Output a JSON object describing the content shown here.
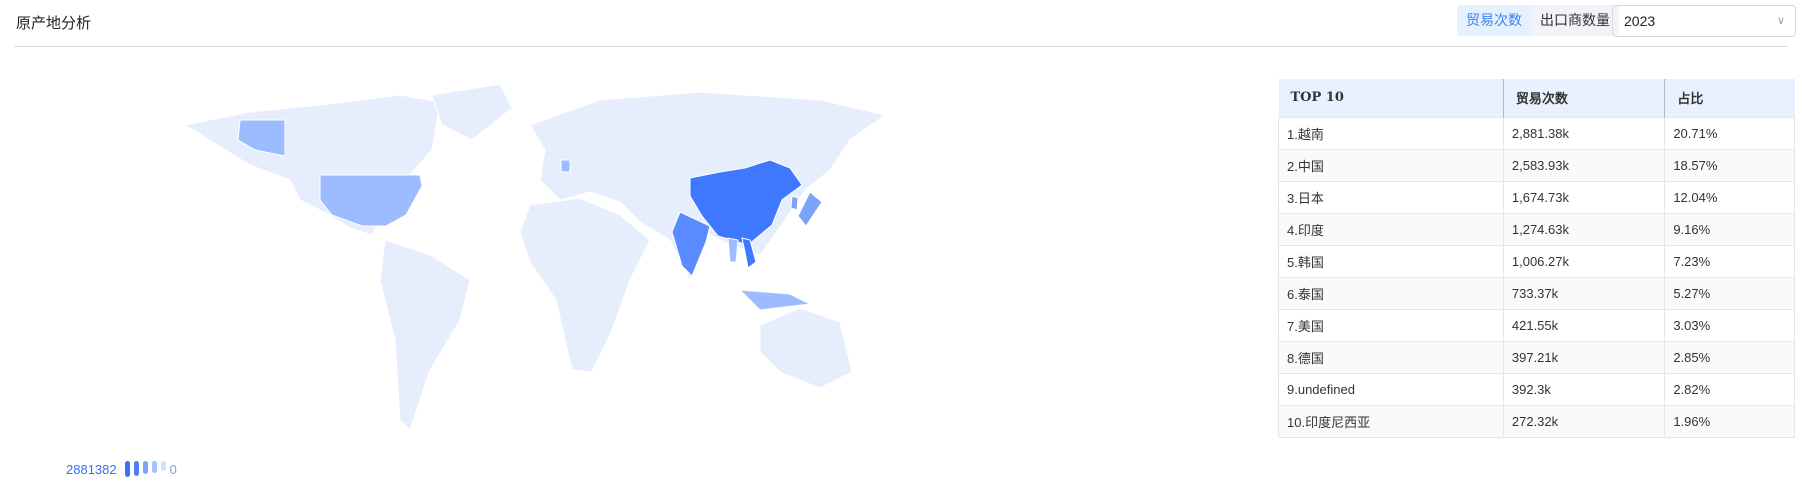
{
  "header": {
    "title": "原产地分析",
    "tabs": [
      {
        "label": "贸易次数",
        "active": true
      },
      {
        "label": "出口商数量",
        "active": false
      }
    ],
    "year_select": "2023"
  },
  "table": {
    "headers": [
      "TOP 10",
      "贸易次数",
      "占比"
    ],
    "rows": [
      [
        "1.越南",
        "2,881.38k",
        "20.71%"
      ],
      [
        "2.中国",
        "2,583.93k",
        "18.57%"
      ],
      [
        "3.日本",
        "1,674.73k",
        "12.04%"
      ],
      [
        "4.印度",
        "1,274.63k",
        "9.16%"
      ],
      [
        "5.韩国",
        "1,006.27k",
        "7.23%"
      ],
      [
        "6.泰国",
        "733.37k",
        "5.27%"
      ],
      [
        "7.美国",
        "421.55k",
        "3.03%"
      ],
      [
        "8.德国",
        "397.21k",
        "2.85%"
      ],
      [
        "9.undefined",
        "392.3k",
        "2.82%"
      ],
      [
        "10.印度尼西亚",
        "272.32k",
        "1.96%"
      ]
    ]
  },
  "visual_map": {
    "max": "2881382",
    "min": "0",
    "colors": [
      "#3a6ff7",
      "#4f7ff8",
      "#7ea1fa",
      "#a9c0fb",
      "#d3e0fd"
    ]
  },
  "map_colors": {
    "base": "#e6edfd",
    "china": "#3e78ff",
    "india": "#5b8cff",
    "usa": "#9dbbff",
    "light": "#b6cbff"
  }
}
